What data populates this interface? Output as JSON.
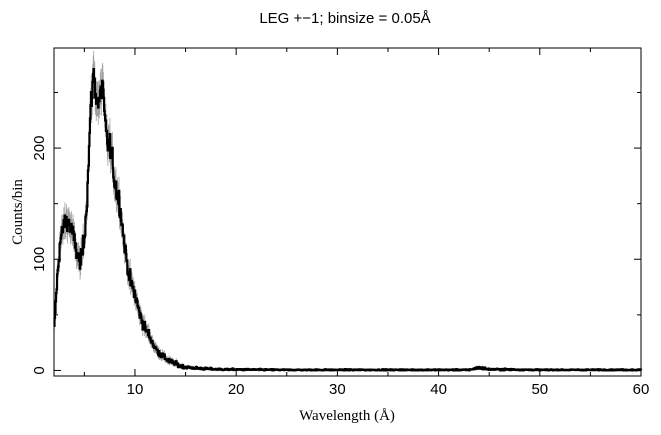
{
  "chart_data": {
    "type": "line",
    "title": "LEG +−1; binsize = 0.05Å",
    "xlabel": "Wavelength (Å)",
    "ylabel": "Counts/bin",
    "xlim": [
      2,
      60
    ],
    "ylim": [
      -5,
      290
    ],
    "x_ticks": [
      10,
      20,
      30,
      40,
      50,
      60
    ],
    "x_tick_labels": [
      "10",
      "20",
      "30",
      "40",
      "50",
      "60"
    ],
    "y_ticks": [
      0,
      100,
      200
    ],
    "y_tick_labels": [
      "0",
      "100",
      "200"
    ],
    "grid": false,
    "series": [
      {
        "style": "histogram",
        "color": "#000000",
        "error_color": "#a0a0a0",
        "x": [
          2.0,
          2.3,
          2.6,
          3.0,
          3.4,
          3.8,
          4.2,
          4.6,
          5.0,
          5.3,
          5.6,
          5.9,
          6.2,
          6.5,
          6.8,
          7.0,
          7.3,
          7.6,
          8.0,
          8.5,
          9.0,
          9.5,
          10.0,
          10.5,
          11.0,
          11.5,
          12.0,
          12.5,
          13.0,
          13.5,
          14.0,
          14.5,
          15.0,
          16.0,
          17.0,
          18.0,
          20.0,
          25.0,
          30.0,
          35.0,
          40.0,
          43.0,
          44.0,
          45.0,
          50.0,
          55.0,
          60.0
        ],
        "y": [
          33,
          80,
          115,
          132,
          135,
          125,
          108,
          95,
          120,
          160,
          230,
          268,
          245,
          240,
          262,
          225,
          205,
          200,
          170,
          150,
          110,
          82,
          68,
          50,
          38,
          30,
          20,
          15,
          11,
          8,
          6,
          4,
          3,
          2,
          1.5,
          1,
          0.8,
          0.5,
          0.5,
          0.5,
          0.5,
          0.5,
          2.5,
          1,
          0.5,
          0.5,
          0.5
        ]
      }
    ]
  }
}
